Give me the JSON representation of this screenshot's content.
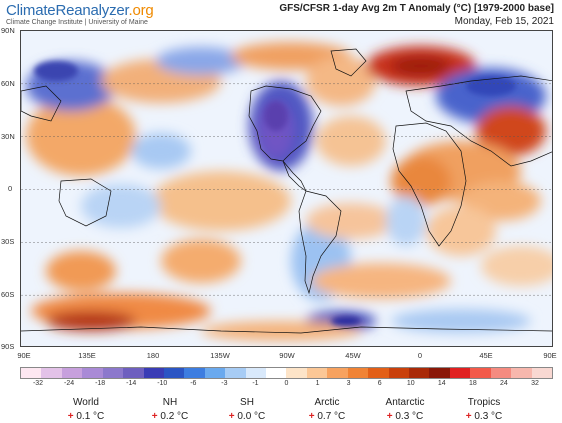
{
  "brand": {
    "part1": "Climate",
    "part2": "Reanalyzer",
    "part3": ".org",
    "subtitle": "Climate Change Institute | University of Maine"
  },
  "header": {
    "title": "GFS/CFSR 1-day Avg 2m T Anomaly (°C) [1979-2000 base]",
    "date": "Monday, Feb 15, 2021"
  },
  "axes": {
    "lat_labels": [
      "90N",
      "60N",
      "30N",
      "0",
      "30S",
      "60S",
      "90S"
    ],
    "lon_labels": [
      "90E",
      "135E",
      "180",
      "135W",
      "90W",
      "45W",
      "0",
      "45E",
      "90E"
    ]
  },
  "colorbar": {
    "labels": [
      "-32",
      "-24",
      "-18",
      "-14",
      "-10",
      "-6",
      "-3",
      "-1",
      "0",
      "1",
      "3",
      "6",
      "10",
      "14",
      "18",
      "24",
      "32"
    ],
    "colors": [
      "#fde7f1",
      "#e3c2e8",
      "#c7a0dd",
      "#a98ad6",
      "#8c78cc",
      "#6e5fbf",
      "#3a3cb5",
      "#2b55c4",
      "#3d7de0",
      "#6aa9ee",
      "#a7ccf5",
      "#d9e9fb",
      "#ffffff",
      "#fde4c8",
      "#fbc796",
      "#f7a25f",
      "#f08335",
      "#e25f17",
      "#c9400b",
      "#a92a08",
      "#8a1808",
      "#e02020",
      "#f35a4a",
      "#f58b80",
      "#f7b7ad",
      "#f9d8d2"
    ]
  },
  "stats": [
    {
      "name": "World",
      "value": "0.1 °C"
    },
    {
      "name": "NH",
      "value": "0.2 °C"
    },
    {
      "name": "SH",
      "value": "0.0 °C"
    },
    {
      "name": "Arctic",
      "value": "0.7 °C"
    },
    {
      "name": "Antarctic",
      "value": "0.3 °C"
    },
    {
      "name": "Tropics",
      "value": "0.3 °C"
    }
  ]
}
